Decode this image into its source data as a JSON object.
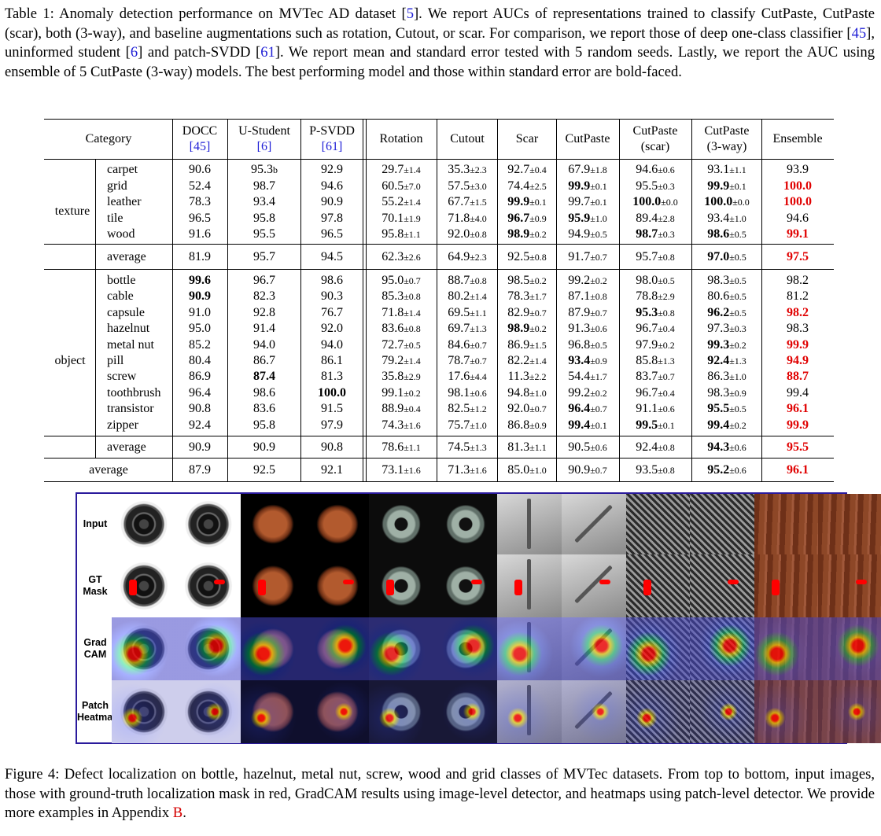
{
  "table_caption": {
    "label": "Table 1:",
    "parts": [
      {
        "t": " Anomaly detection performance on MVTec AD dataset [",
        "c": ""
      },
      {
        "t": "5",
        "c": "ref"
      },
      {
        "t": "]. We report AUCs of representations trained to classify CutPaste, CutPaste (scar), both (3-way), and baseline augmentations such as rotation, Cutout, or scar. For comparison, we report those of deep one-class classifier [",
        "c": ""
      },
      {
        "t": "45",
        "c": "ref"
      },
      {
        "t": "], uninformed student [",
        "c": ""
      },
      {
        "t": "6",
        "c": "ref"
      },
      {
        "t": "] and patch-SVDD [",
        "c": ""
      },
      {
        "t": "61",
        "c": "ref"
      },
      {
        "t": "]. We report mean and standard error tested with 5 random seeds. Lastly, we report the AUC using ensemble of 5 CutPaste (3-way) models. The best performing model and those within standard error are bold-faced.",
        "c": ""
      }
    ]
  },
  "table": {
    "headers": [
      {
        "l1": "Category",
        "l2": ""
      },
      {
        "l1": "DOCC",
        "l2": "[45]",
        "ref": true
      },
      {
        "l1": "U-Student",
        "l2": "[6]",
        "ref": true
      },
      {
        "l1": "P-SVDD",
        "l2": "[61]",
        "ref": true
      },
      {
        "l1": "Rotation",
        "l2": ""
      },
      {
        "l1": "Cutout",
        "l2": ""
      },
      {
        "l1": "Scar",
        "l2": ""
      },
      {
        "l1": "CutPaste",
        "l2": ""
      },
      {
        "l1": "CutPaste",
        "l2": "(scar)"
      },
      {
        "l1": "CutPaste",
        "l2": "(3-way)"
      },
      {
        "l1": "Ensemble",
        "l2": ""
      }
    ],
    "groups": [
      {
        "name": "texture",
        "rows": [
          {
            "cat": "carpet",
            "vals": [
              [
                "90.6"
              ],
              [
                "95.3",
                "b"
              ],
              [
                "92.9"
              ],
              [
                "29.7",
                "±1.4"
              ],
              [
                "35.3",
                "±2.3"
              ],
              [
                "92.7",
                "±0.4"
              ],
              [
                "67.9",
                "±1.8"
              ],
              [
                "94.6",
                "±0.6"
              ],
              [
                "93.1",
                "±1.1"
              ],
              [
                "93.9"
              ]
            ]
          },
          {
            "cat": "grid",
            "vals": [
              [
                "52.4"
              ],
              [
                "98.7"
              ],
              [
                "94.6"
              ],
              [
                "60.5",
                "±7.0"
              ],
              [
                "57.5",
                "±3.0"
              ],
              [
                "74.4",
                "±2.5"
              ],
              [
                "99.9",
                "±0.1",
                "b"
              ],
              [
                "95.5",
                "±0.3"
              ],
              [
                "99.9",
                "±0.1",
                "b"
              ],
              [
                "100.0",
                "",
                "r"
              ]
            ]
          },
          {
            "cat": "leather",
            "vals": [
              [
                "78.3"
              ],
              [
                "93.4"
              ],
              [
                "90.9"
              ],
              [
                "55.2",
                "±1.4"
              ],
              [
                "67.7",
                "±1.5"
              ],
              [
                "99.9",
                "±0.1",
                "b"
              ],
              [
                "99.7",
                "±0.1"
              ],
              [
                "100.0",
                "±0.0",
                "b"
              ],
              [
                "100.0",
                "±0.0",
                "b"
              ],
              [
                "100.0",
                "",
                "r"
              ]
            ]
          },
          {
            "cat": "tile",
            "vals": [
              [
                "96.5"
              ],
              [
                "95.8"
              ],
              [
                "97.8"
              ],
              [
                "70.1",
                "±1.9"
              ],
              [
                "71.8",
                "±4.0"
              ],
              [
                "96.7",
                "±0.9",
                "b"
              ],
              [
                "95.9",
                "±1.0",
                "b"
              ],
              [
                "89.4",
                "±2.8"
              ],
              [
                "93.4",
                "±1.0"
              ],
              [
                "94.6"
              ]
            ]
          },
          {
            "cat": "wood",
            "vals": [
              [
                "91.6"
              ],
              [
                "95.5"
              ],
              [
                "96.5"
              ],
              [
                "95.8",
                "±1.1"
              ],
              [
                "92.0",
                "±0.8"
              ],
              [
                "98.9",
                "±0.2",
                "b"
              ],
              [
                "94.9",
                "±0.5"
              ],
              [
                "98.7",
                "±0.3",
                "b"
              ],
              [
                "98.6",
                "±0.5",
                "b"
              ],
              [
                "99.1",
                "",
                "r"
              ]
            ]
          }
        ],
        "average": {
          "cat": "average",
          "vals": [
            [
              "81.9"
            ],
            [
              "95.7"
            ],
            [
              "94.5"
            ],
            [
              "62.3",
              "±2.6"
            ],
            [
              "64.9",
              "±2.3"
            ],
            [
              "92.5",
              "±0.8"
            ],
            [
              "91.7",
              "±0.7"
            ],
            [
              "95.7",
              "±0.8"
            ],
            [
              "97.0",
              "±0.5",
              "b"
            ],
            [
              "97.5",
              "",
              "r"
            ]
          ]
        }
      },
      {
        "name": "object",
        "rows": [
          {
            "cat": "bottle",
            "vals": [
              [
                "99.6",
                "",
                "b"
              ],
              [
                "96.7"
              ],
              [
                "98.6"
              ],
              [
                "95.0",
                "±0.7"
              ],
              [
                "88.7",
                "±0.8"
              ],
              [
                "98.5",
                "±0.2"
              ],
              [
                "99.2",
                "±0.2"
              ],
              [
                "98.0",
                "±0.5"
              ],
              [
                "98.3",
                "±0.5"
              ],
              [
                "98.2"
              ]
            ]
          },
          {
            "cat": "cable",
            "vals": [
              [
                "90.9",
                "",
                "b"
              ],
              [
                "82.3"
              ],
              [
                "90.3"
              ],
              [
                "85.3",
                "±0.8"
              ],
              [
                "80.2",
                "±1.4"
              ],
              [
                "78.3",
                "±1.7"
              ],
              [
                "87.1",
                "±0.8"
              ],
              [
                "78.8",
                "±2.9"
              ],
              [
                "80.6",
                "±0.5"
              ],
              [
                "81.2"
              ]
            ]
          },
          {
            "cat": "capsule",
            "vals": [
              [
                "91.0"
              ],
              [
                "92.8"
              ],
              [
                "76.7"
              ],
              [
                "71.8",
                "±1.4"
              ],
              [
                "69.5",
                "±1.1"
              ],
              [
                "82.9",
                "±0.7"
              ],
              [
                "87.9",
                "±0.7"
              ],
              [
                "95.3",
                "±0.8",
                "b"
              ],
              [
                "96.2",
                "±0.5",
                "b"
              ],
              [
                "98.2",
                "",
                "r"
              ]
            ]
          },
          {
            "cat": "hazelnut",
            "vals": [
              [
                "95.0"
              ],
              [
                "91.4"
              ],
              [
                "92.0"
              ],
              [
                "83.6",
                "±0.8"
              ],
              [
                "69.7",
                "±1.3"
              ],
              [
                "98.9",
                "±0.2",
                "b"
              ],
              [
                "91.3",
                "±0.6"
              ],
              [
                "96.7",
                "±0.4"
              ],
              [
                "97.3",
                "±0.3"
              ],
              [
                "98.3"
              ]
            ]
          },
          {
            "cat": "metal nut",
            "vals": [
              [
                "85.2"
              ],
              [
                "94.0"
              ],
              [
                "94.0"
              ],
              [
                "72.7",
                "±0.5"
              ],
              [
                "84.6",
                "±0.7"
              ],
              [
                "86.9",
                "±1.5"
              ],
              [
                "96.8",
                "±0.5"
              ],
              [
                "97.9",
                "±0.2"
              ],
              [
                "99.3",
                "±0.2",
                "b"
              ],
              [
                "99.9",
                "",
                "r"
              ]
            ]
          },
          {
            "cat": "pill",
            "vals": [
              [
                "80.4"
              ],
              [
                "86.7"
              ],
              [
                "86.1"
              ],
              [
                "79.2",
                "±1.4"
              ],
              [
                "78.7",
                "±0.7"
              ],
              [
                "82.2",
                "±1.4"
              ],
              [
                "93.4",
                "±0.9",
                "b"
              ],
              [
                "85.8",
                "±1.3"
              ],
              [
                "92.4",
                "±1.3",
                "b"
              ],
              [
                "94.9",
                "",
                "r"
              ]
            ]
          },
          {
            "cat": "screw",
            "vals": [
              [
                "86.9"
              ],
              [
                "87.4",
                "",
                "b"
              ],
              [
                "81.3"
              ],
              [
                "35.8",
                "±2.9"
              ],
              [
                "17.6",
                "±4.4"
              ],
              [
                "11.3",
                "±2.2"
              ],
              [
                "54.4",
                "±1.7"
              ],
              [
                "83.7",
                "±0.7"
              ],
              [
                "86.3",
                "±1.0"
              ],
              [
                "88.7",
                "",
                "r"
              ]
            ]
          },
          {
            "cat": "toothbrush",
            "vals": [
              [
                "96.4"
              ],
              [
                "98.6"
              ],
              [
                "100.0",
                "",
                "b"
              ],
              [
                "99.1",
                "±0.2"
              ],
              [
                "98.1",
                "±0.6"
              ],
              [
                "94.8",
                "±1.0"
              ],
              [
                "99.2",
                "±0.2"
              ],
              [
                "96.7",
                "±0.4"
              ],
              [
                "98.3",
                "±0.9"
              ],
              [
                "99.4"
              ]
            ]
          },
          {
            "cat": "transistor",
            "vals": [
              [
                "90.8"
              ],
              [
                "83.6"
              ],
              [
                "91.5"
              ],
              [
                "88.9",
                "±0.4"
              ],
              [
                "82.5",
                "±1.2"
              ],
              [
                "92.0",
                "±0.7"
              ],
              [
                "96.4",
                "±0.7",
                "b"
              ],
              [
                "91.1",
                "±0.6"
              ],
              [
                "95.5",
                "±0.5",
                "b"
              ],
              [
                "96.1",
                "",
                "r"
              ]
            ]
          },
          {
            "cat": "zipper",
            "vals": [
              [
                "92.4"
              ],
              [
                "95.8"
              ],
              [
                "97.9"
              ],
              [
                "74.3",
                "±1.6"
              ],
              [
                "75.7",
                "±1.0"
              ],
              [
                "86.8",
                "±0.9"
              ],
              [
                "99.4",
                "±0.1",
                "b"
              ],
              [
                "99.5",
                "±0.1",
                "b"
              ],
              [
                "99.4",
                "±0.2",
                "b"
              ],
              [
                "99.9",
                "",
                "r"
              ]
            ]
          }
        ],
        "average": {
          "cat": "average",
          "vals": [
            [
              "90.9"
            ],
            [
              "90.9"
            ],
            [
              "90.8"
            ],
            [
              "78.6",
              "±1.1"
            ],
            [
              "74.5",
              "±1.3"
            ],
            [
              "81.3",
              "±1.1"
            ],
            [
              "90.5",
              "±0.6"
            ],
            [
              "92.4",
              "±0.8"
            ],
            [
              "94.3",
              "±0.6",
              "b"
            ],
            [
              "95.5",
              "",
              "r"
            ]
          ]
        }
      }
    ],
    "overall": {
      "cat": "average",
      "vals": [
        [
          "87.9"
        ],
        [
          "92.5"
        ],
        [
          "92.1"
        ],
        [
          "73.1",
          "±1.6"
        ],
        [
          "71.3",
          "±1.6"
        ],
        [
          "85.0",
          "±1.0"
        ],
        [
          "90.9",
          "±0.7"
        ],
        [
          "93.5",
          "±0.8"
        ],
        [
          "95.2",
          "±0.6",
          "b"
        ],
        [
          "96.1",
          "",
          "r"
        ]
      ]
    }
  },
  "figure": {
    "row_labels": [
      [
        "Input"
      ],
      [
        "GT",
        "Mask"
      ],
      [
        "Grad",
        "CAM"
      ],
      [
        "Patch",
        "Heatmap"
      ]
    ],
    "classes": [
      "bottle",
      "hazelnut",
      "metal nut",
      "screw",
      "grid",
      "wood"
    ]
  },
  "figure_caption": {
    "label": "Figure 4:",
    "text": " Defect localization on bottle, hazelnut, metal nut, screw, wood and grid classes of MVTec datasets. From top to bottom, input images, those with ground-truth localization mask in red, GradCAM results using image-level detector, and heatmaps using patch-level detector. We provide more examples in Appendix ",
    "appendix": "B",
    "end": "."
  },
  "colors": {
    "ref": "#1f1fd6",
    "ensemble_red": "#e00000",
    "figure_border": "#2a1a9c"
  }
}
